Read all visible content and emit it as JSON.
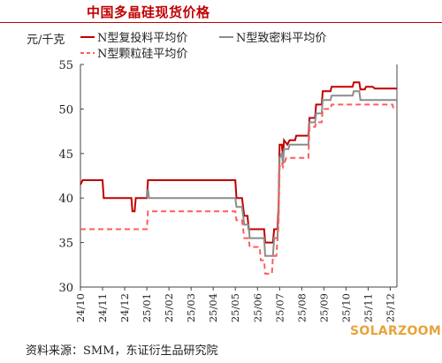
{
  "title": "中国多晶硅现货价格",
  "source": "资料来源：SMM，东证衍生品研究院",
  "watermark": "SOLARZOOM",
  "chart_data": {
    "type": "line",
    "ylabel": "元/千克",
    "ylim": [
      30,
      55
    ],
    "yticks": [
      30,
      35,
      40,
      45,
      50,
      55
    ],
    "x_tick_labels": [
      "24/10",
      "24/11",
      "24/12",
      "25/01",
      "25/02",
      "25/03",
      "25/04",
      "25/05",
      "25/06",
      "25/07",
      "25/08",
      "25/09",
      "25/10",
      "25/11",
      "25/12"
    ],
    "x_range": [
      0,
      14.3
    ],
    "grid": false,
    "legend_position": "top",
    "series": [
      {
        "name": "N型复投料平均价",
        "color": "#c00000",
        "dash": "solid",
        "points": [
          [
            0,
            41.5
          ],
          [
            0.1,
            42.0
          ],
          [
            1.0,
            42.0
          ],
          [
            1.05,
            40.0
          ],
          [
            2.3,
            40.0
          ],
          [
            2.35,
            38.5
          ],
          [
            2.45,
            38.5
          ],
          [
            2.5,
            40.0
          ],
          [
            3.0,
            40.0
          ],
          [
            3.05,
            42.0
          ],
          [
            7.0,
            42.0
          ],
          [
            7.05,
            40.0
          ],
          [
            7.3,
            40.0
          ],
          [
            7.4,
            38.0
          ],
          [
            7.55,
            38.0
          ],
          [
            7.6,
            36.5
          ],
          [
            8.3,
            36.5
          ],
          [
            8.35,
            35.0
          ],
          [
            8.7,
            35.0
          ],
          [
            8.75,
            36.5
          ],
          [
            8.9,
            36.5
          ],
          [
            8.95,
            39.0
          ],
          [
            9.0,
            46.0
          ],
          [
            9.1,
            46.0
          ],
          [
            9.15,
            44.5
          ],
          [
            9.2,
            46.5
          ],
          [
            9.35,
            46.0
          ],
          [
            9.45,
            46.5
          ],
          [
            9.7,
            46.5
          ],
          [
            9.75,
            47.0
          ],
          [
            10.3,
            47.0
          ],
          [
            10.35,
            49.0
          ],
          [
            10.6,
            49.0
          ],
          [
            10.65,
            50.5
          ],
          [
            10.9,
            50.5
          ],
          [
            10.95,
            52.0
          ],
          [
            11.3,
            52.0
          ],
          [
            11.35,
            52.5
          ],
          [
            12.3,
            52.5
          ],
          [
            12.35,
            53.0
          ],
          [
            12.6,
            53.0
          ],
          [
            12.65,
            52.2
          ],
          [
            12.85,
            52.2
          ],
          [
            12.9,
            52.5
          ],
          [
            13.2,
            52.5
          ],
          [
            13.3,
            52.3
          ],
          [
            14.3,
            52.3
          ]
        ]
      },
      {
        "name": "N型致密料平均价",
        "color": "#8c8c8c",
        "dash": "solid",
        "points": [
          [
            3.0,
            40.0
          ],
          [
            3.05,
            41.0
          ],
          [
            3.1,
            40.0
          ],
          [
            7.0,
            40.0
          ],
          [
            7.05,
            39.0
          ],
          [
            7.3,
            39.0
          ],
          [
            7.4,
            37.0
          ],
          [
            7.6,
            37.0
          ],
          [
            7.65,
            35.5
          ],
          [
            8.3,
            35.5
          ],
          [
            8.35,
            33.5
          ],
          [
            8.7,
            33.5
          ],
          [
            8.75,
            35.5
          ],
          [
            8.9,
            35.5
          ],
          [
            8.95,
            38.0
          ],
          [
            9.0,
            44.5
          ],
          [
            9.1,
            45.0
          ],
          [
            9.15,
            43.8
          ],
          [
            9.2,
            45.5
          ],
          [
            9.4,
            45.5
          ],
          [
            9.45,
            46.0
          ],
          [
            10.3,
            46.0
          ],
          [
            10.35,
            48.5
          ],
          [
            10.6,
            48.5
          ],
          [
            10.65,
            49.5
          ],
          [
            10.9,
            49.5
          ],
          [
            10.95,
            51.0
          ],
          [
            11.3,
            51.0
          ],
          [
            11.35,
            51.5
          ],
          [
            12.3,
            51.5
          ],
          [
            12.35,
            52.0
          ],
          [
            12.6,
            52.0
          ],
          [
            12.65,
            51.0
          ],
          [
            14.3,
            51.0
          ]
        ]
      },
      {
        "name": "N型颗粒硅平均价",
        "color": "#ff5c5c",
        "dash": "dashed",
        "points": [
          [
            0,
            36.5
          ],
          [
            3.0,
            36.5
          ],
          [
            3.05,
            38.5
          ],
          [
            7.0,
            38.5
          ],
          [
            7.05,
            37.5
          ],
          [
            7.3,
            37.5
          ],
          [
            7.4,
            35.5
          ],
          [
            7.6,
            35.5
          ],
          [
            7.65,
            34.5
          ],
          [
            8.1,
            34.5
          ],
          [
            8.15,
            33.0
          ],
          [
            8.3,
            33.0
          ],
          [
            8.35,
            31.5
          ],
          [
            8.65,
            31.5
          ],
          [
            8.7,
            33.5
          ],
          [
            8.85,
            33.5
          ],
          [
            8.95,
            37.0
          ],
          [
            9.0,
            43.5
          ],
          [
            9.1,
            44.0
          ],
          [
            9.15,
            43.5
          ],
          [
            9.3,
            44.5
          ],
          [
            10.3,
            44.5
          ],
          [
            10.35,
            48.0
          ],
          [
            10.6,
            48.0
          ],
          [
            10.65,
            48.5
          ],
          [
            10.9,
            48.5
          ],
          [
            10.95,
            50.0
          ],
          [
            11.3,
            50.0
          ],
          [
            11.35,
            50.5
          ],
          [
            12.6,
            50.5
          ],
          [
            14.1,
            50.5
          ],
          [
            14.15,
            50.0
          ],
          [
            14.3,
            50.0
          ]
        ]
      }
    ]
  }
}
